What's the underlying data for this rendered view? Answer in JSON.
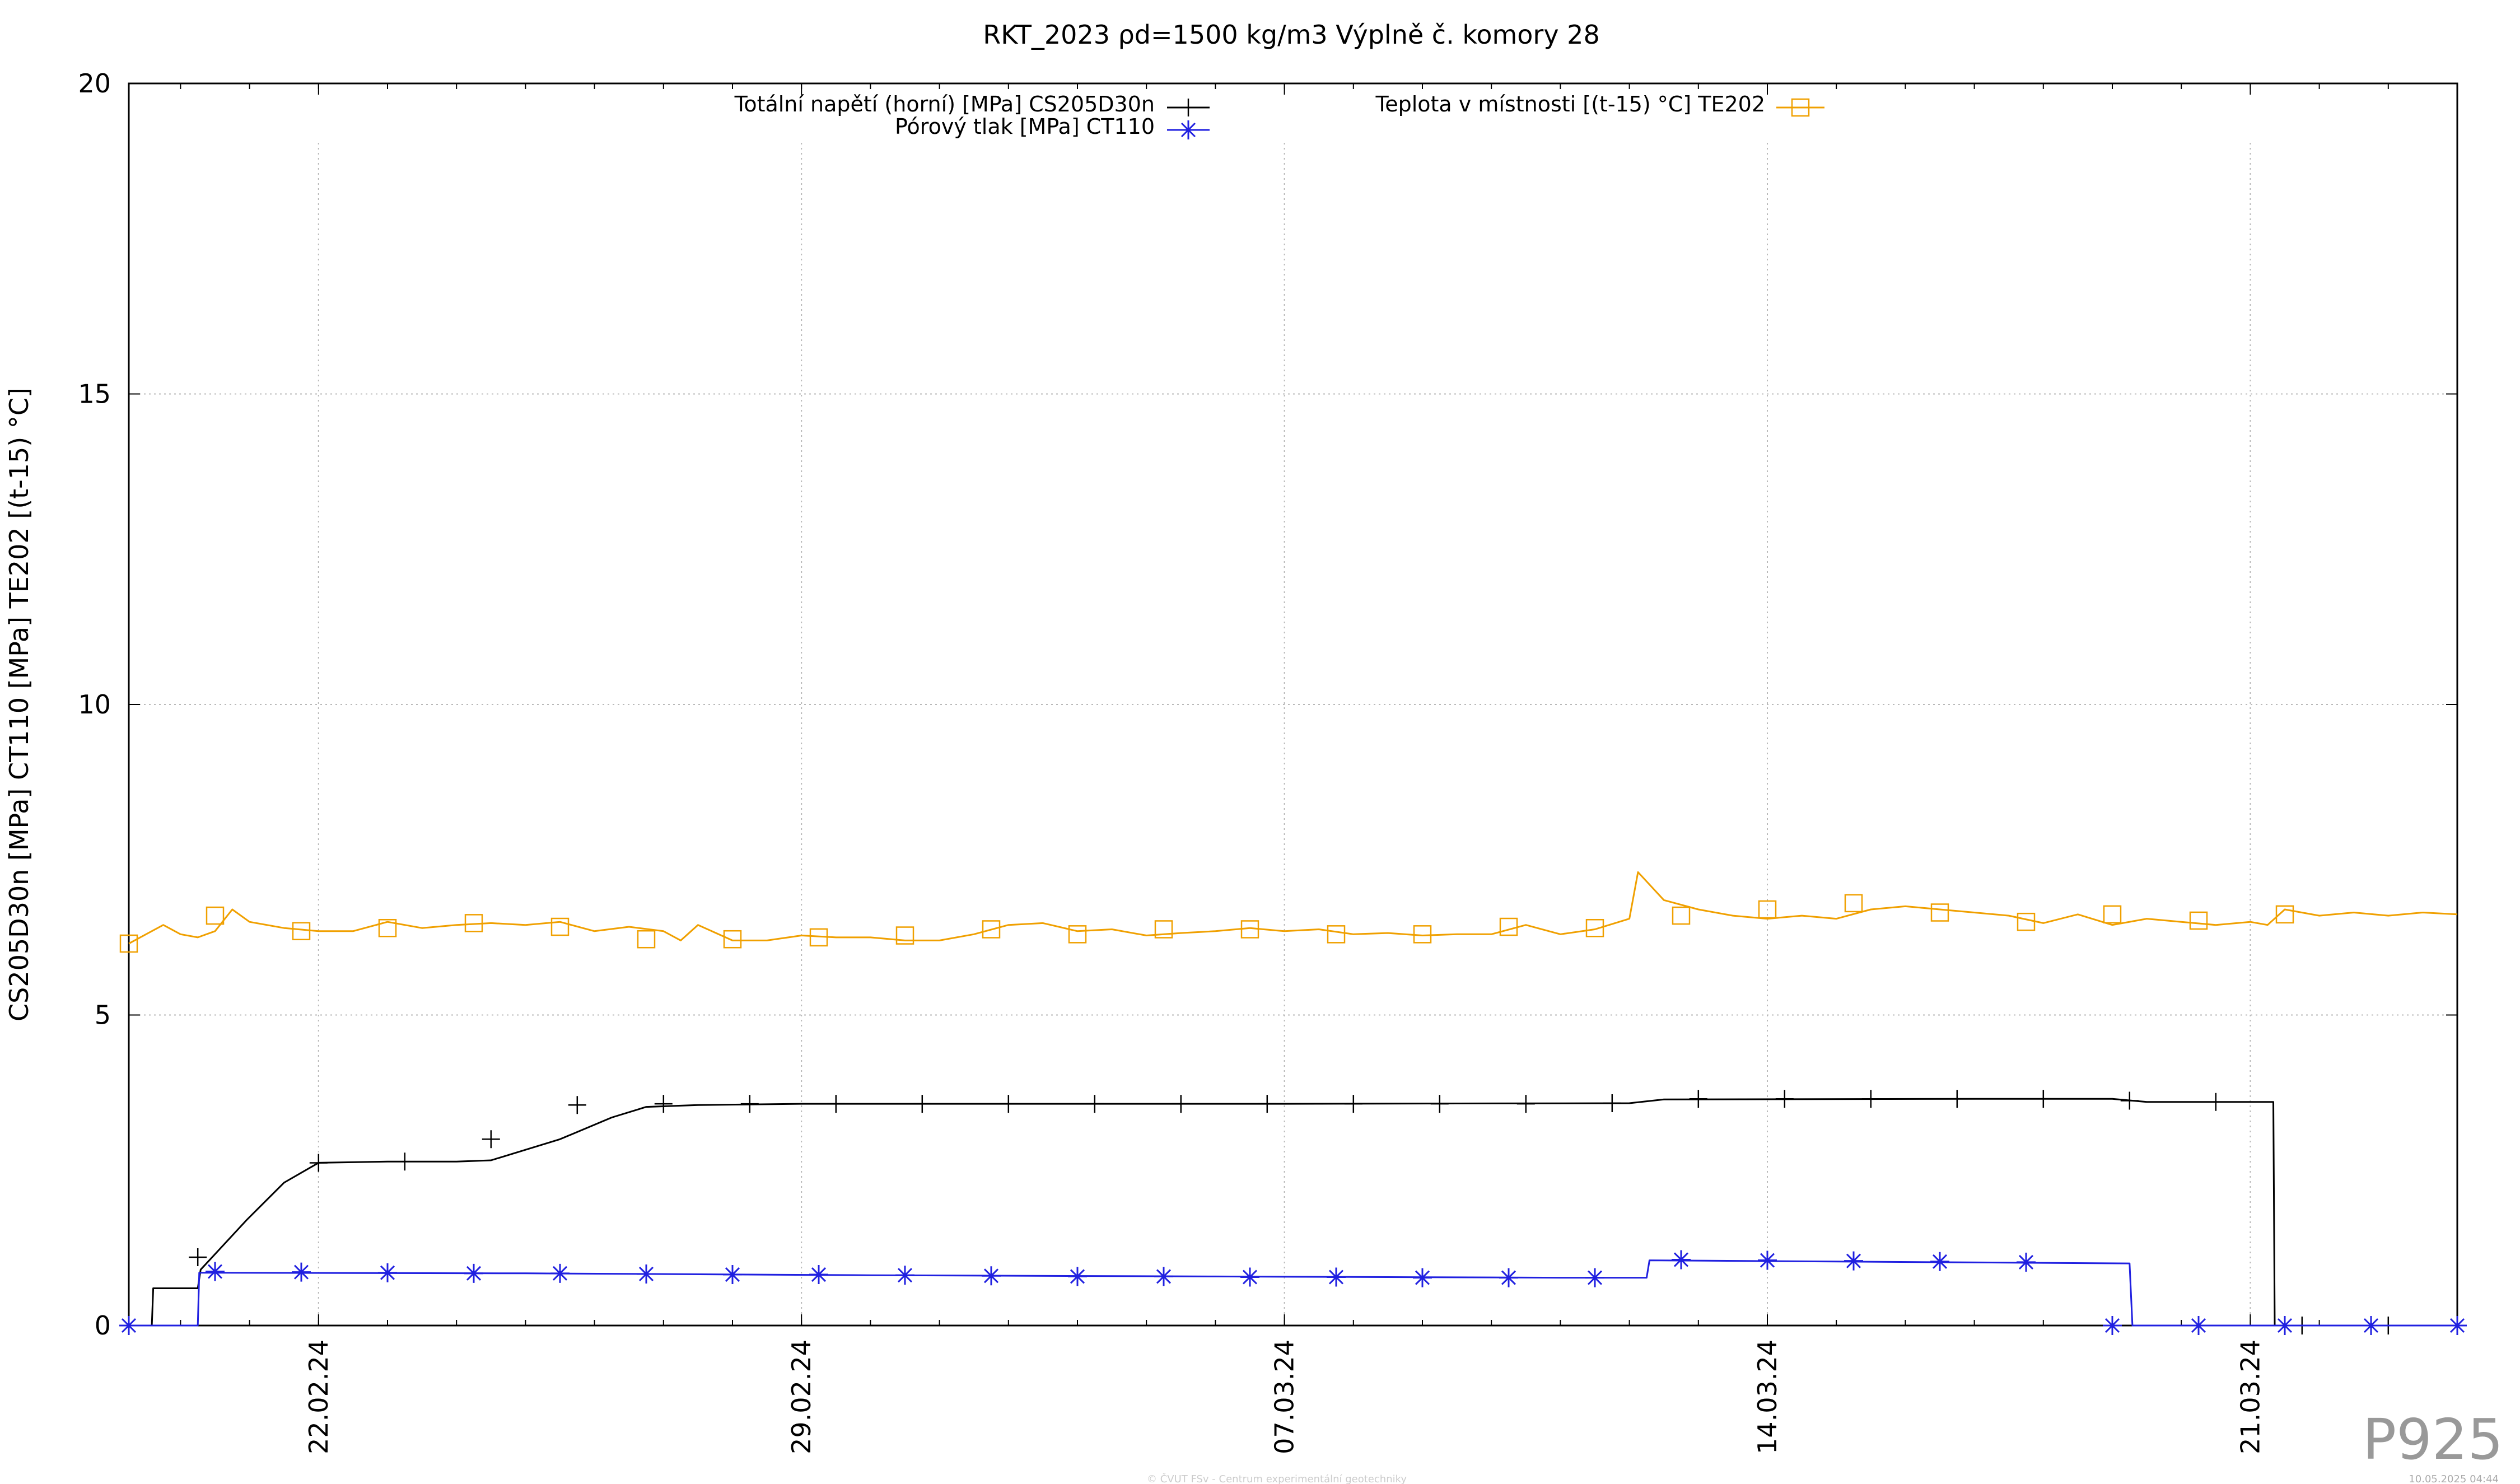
{
  "chart_data": {
    "type": "line",
    "title": "RKT_2023 ρd=1500 kg/m3 Výplně č. komory 28",
    "ylabel": "CS205D30n [MPa] CT110 [MPa] TE202 [(t-15) °C]",
    "xlabel": "",
    "ylim": [
      0,
      20
    ],
    "yticks": [
      "0",
      "5",
      "10",
      "15",
      "20"
    ],
    "xlim": [
      "2024-02-19T06:00",
      "2024-03-24T00:00"
    ],
    "xticks": [
      {
        "date": "2024-02-22",
        "label": "22.02.24"
      },
      {
        "date": "2024-02-29",
        "label": "29.02.24"
      },
      {
        "date": "2024-03-07",
        "label": "07.03.24"
      },
      {
        "date": "2024-03-14",
        "label": "14.03.24"
      },
      {
        "date": "2024-03-21",
        "label": "21.03.24"
      }
    ],
    "grid": true,
    "legend_position": "top",
    "series": [
      {
        "name": "Totální napětí (horní) [MPa] CS205D30n",
        "color": "#000000",
        "marker": "plus",
        "points": [
          [
            "2024-02-19T06:00",
            0.0
          ],
          [
            "2024-02-19T14:00",
            0.0
          ],
          [
            "2024-02-19T14:30",
            0.6
          ],
          [
            "2024-02-20T06:00",
            0.6
          ],
          [
            "2024-02-20T07:00",
            0.9
          ],
          [
            "2024-02-20T12:00",
            1.15
          ],
          [
            "2024-02-20T23:00",
            1.7
          ],
          [
            "2024-02-21T12:00",
            2.3
          ],
          [
            "2024-02-22T00:00",
            2.62
          ],
          [
            "2024-02-23T00:00",
            2.64
          ],
          [
            "2024-02-24T00:00",
            2.64
          ],
          [
            "2024-02-24T12:00",
            2.66
          ],
          [
            "2024-02-25T12:00",
            3.0
          ],
          [
            "2024-02-26T06:00",
            3.35
          ],
          [
            "2024-02-26T18:00",
            3.52
          ],
          [
            "2024-02-27T12:00",
            3.55
          ],
          [
            "2024-02-29T00:00",
            3.57
          ],
          [
            "2024-03-07T00:00",
            3.57
          ],
          [
            "2024-03-12T00:00",
            3.58
          ],
          [
            "2024-03-12T12:00",
            3.64
          ],
          [
            "2024-03-17T00:00",
            3.65
          ],
          [
            "2024-03-19T00:00",
            3.65
          ],
          [
            "2024-03-19T12:00",
            3.6
          ],
          [
            "2024-03-21T08:00",
            3.6
          ],
          [
            "2024-03-21T08:30",
            0.0
          ],
          [
            "2024-03-24T00:00",
            0.0
          ]
        ],
        "markers": [
          [
            "2024-02-20T06:00",
            1.1
          ],
          [
            "2024-02-22T00:00",
            2.62
          ],
          [
            "2024-02-23T06:00",
            2.64
          ],
          [
            "2024-02-24T12:00",
            3.0
          ],
          [
            "2024-02-25T18:00",
            3.55
          ],
          [
            "2024-02-27T00:00",
            3.57
          ],
          [
            "2024-02-28T06:00",
            3.57
          ],
          [
            "2024-02-29T12:00",
            3.57
          ],
          [
            "2024-03-01T18:00",
            3.57
          ],
          [
            "2024-03-03T00:00",
            3.57
          ],
          [
            "2024-03-04T06:00",
            3.57
          ],
          [
            "2024-03-05T12:00",
            3.57
          ],
          [
            "2024-03-06T18:00",
            3.57
          ],
          [
            "2024-03-08T00:00",
            3.57
          ],
          [
            "2024-03-09T06:00",
            3.57
          ],
          [
            "2024-03-10T12:00",
            3.57
          ],
          [
            "2024-03-11T18:00",
            3.58
          ],
          [
            "2024-03-13T00:00",
            3.65
          ],
          [
            "2024-03-14T06:00",
            3.65
          ],
          [
            "2024-03-15T12:00",
            3.65
          ],
          [
            "2024-03-16T18:00",
            3.65
          ],
          [
            "2024-03-18T00:00",
            3.65
          ],
          [
            "2024-03-19T06:00",
            3.62
          ],
          [
            "2024-03-20T12:00",
            3.6
          ],
          [
            "2024-03-21T18:00",
            0.0
          ],
          [
            "2024-03-23T00:00",
            0.0
          ]
        ]
      },
      {
        "name": "Pórový tlak [MPa] CT110",
        "color": "#2020e0",
        "marker": "star",
        "points": [
          [
            "2024-02-19T06:00",
            0.0
          ],
          [
            "2024-02-20T06:00",
            0.0
          ],
          [
            "2024-02-20T06:30",
            0.85
          ],
          [
            "2024-02-25T00:00",
            0.84
          ],
          [
            "2024-03-01T00:00",
            0.81
          ],
          [
            "2024-03-06T00:00",
            0.79
          ],
          [
            "2024-03-11T00:00",
            0.77
          ],
          [
            "2024-03-12T06:00",
            0.77
          ],
          [
            "2024-03-12T07:00",
            1.05
          ],
          [
            "2024-03-19T06:00",
            1.0
          ],
          [
            "2024-03-19T07:00",
            0.0
          ],
          [
            "2024-03-24T00:00",
            0.0
          ]
        ],
        "markers": [
          [
            "2024-02-19T06:00",
            0.0
          ],
          [
            "2024-02-20T12:00",
            0.87
          ],
          [
            "2024-02-21T18:00",
            0.86
          ],
          [
            "2024-02-23T00:00",
            0.85
          ],
          [
            "2024-02-24T06:00",
            0.84
          ],
          [
            "2024-02-25T12:00",
            0.84
          ],
          [
            "2024-02-26T18:00",
            0.83
          ],
          [
            "2024-02-28T00:00",
            0.82
          ],
          [
            "2024-02-29T06:00",
            0.82
          ],
          [
            "2024-03-01T12:00",
            0.81
          ],
          [
            "2024-03-02T18:00",
            0.8
          ],
          [
            "2024-03-04T00:00",
            0.79
          ],
          [
            "2024-03-05T06:00",
            0.79
          ],
          [
            "2024-03-06T12:00",
            0.78
          ],
          [
            "2024-03-07T18:00",
            0.78
          ],
          [
            "2024-03-09T00:00",
            0.77
          ],
          [
            "2024-03-10T06:00",
            0.77
          ],
          [
            "2024-03-11T12:00",
            0.77
          ],
          [
            "2024-03-12T18:00",
            1.06
          ],
          [
            "2024-03-14T00:00",
            1.05
          ],
          [
            "2024-03-15T06:00",
            1.04
          ],
          [
            "2024-03-16T12:00",
            1.03
          ],
          [
            "2024-03-17T18:00",
            1.02
          ],
          [
            "2024-03-19T00:00",
            0.0
          ],
          [
            "2024-03-20T06:00",
            0.0
          ],
          [
            "2024-03-21T12:00",
            0.0
          ],
          [
            "2024-03-22T18:00",
            0.0
          ],
          [
            "2024-03-24T00:00",
            0.0
          ]
        ]
      },
      {
        "name": "Teplota v místnosti [(t-15) °C] TE202",
        "color": "#f0a000",
        "marker": "square",
        "points": [
          [
            "2024-02-19T06:00",
            6.15
          ],
          [
            "2024-02-19T12:00",
            6.3
          ],
          [
            "2024-02-19T18:00",
            6.45
          ],
          [
            "2024-02-20T00:00",
            6.3
          ],
          [
            "2024-02-20T06:00",
            6.25
          ],
          [
            "2024-02-20T12:00",
            6.35
          ],
          [
            "2024-02-20T18:00",
            6.7
          ],
          [
            "2024-02-21T00:00",
            6.5
          ],
          [
            "2024-02-21T12:00",
            6.4
          ],
          [
            "2024-02-22T00:00",
            6.35
          ],
          [
            "2024-02-22T12:00",
            6.35
          ],
          [
            "2024-02-23T00:00",
            6.5
          ],
          [
            "2024-02-23T12:00",
            6.4
          ],
          [
            "2024-02-24T00:00",
            6.45
          ],
          [
            "2024-02-24T12:00",
            6.48
          ],
          [
            "2024-02-25T00:00",
            6.45
          ],
          [
            "2024-02-25T12:00",
            6.5
          ],
          [
            "2024-02-26T00:00",
            6.35
          ],
          [
            "2024-02-26T12:00",
            6.42
          ],
          [
            "2024-02-27T00:00",
            6.35
          ],
          [
            "2024-02-27T06:00",
            6.2
          ],
          [
            "2024-02-27T12:00",
            6.45
          ],
          [
            "2024-02-28T00:00",
            6.2
          ],
          [
            "2024-02-28T12:00",
            6.2
          ],
          [
            "2024-02-29T00:00",
            6.28
          ],
          [
            "2024-02-29T12:00",
            6.25
          ],
          [
            "2024-03-01T00:00",
            6.25
          ],
          [
            "2024-03-01T12:00",
            6.2
          ],
          [
            "2024-03-02T00:00",
            6.2
          ],
          [
            "2024-03-02T12:00",
            6.3
          ],
          [
            "2024-03-03T00:00",
            6.45
          ],
          [
            "2024-03-03T12:00",
            6.48
          ],
          [
            "2024-03-04T00:00",
            6.35
          ],
          [
            "2024-03-04T12:00",
            6.38
          ],
          [
            "2024-03-05T00:00",
            6.28
          ],
          [
            "2024-03-05T12:00",
            6.32
          ],
          [
            "2024-03-06T00:00",
            6.35
          ],
          [
            "2024-03-06T12:00",
            6.4
          ],
          [
            "2024-03-07T00:00",
            6.35
          ],
          [
            "2024-03-07T12:00",
            6.38
          ],
          [
            "2024-03-08T00:00",
            6.3
          ],
          [
            "2024-03-08T12:00",
            6.32
          ],
          [
            "2024-03-09T00:00",
            6.28
          ],
          [
            "2024-03-09T12:00",
            6.3
          ],
          [
            "2024-03-10T00:00",
            6.3
          ],
          [
            "2024-03-10T12:00",
            6.45
          ],
          [
            "2024-03-11T00:00",
            6.3
          ],
          [
            "2024-03-11T12:00",
            6.38
          ],
          [
            "2024-03-12T00:00",
            6.55
          ],
          [
            "2024-03-12T03:00",
            7.3
          ],
          [
            "2024-03-12T12:00",
            6.85
          ],
          [
            "2024-03-13T00:00",
            6.7
          ],
          [
            "2024-03-13T12:00",
            6.6
          ],
          [
            "2024-03-14T00:00",
            6.55
          ],
          [
            "2024-03-14T12:00",
            6.6
          ],
          [
            "2024-03-15T00:00",
            6.55
          ],
          [
            "2024-03-15T12:00",
            6.7
          ],
          [
            "2024-03-16T00:00",
            6.75
          ],
          [
            "2024-03-16T12:00",
            6.7
          ],
          [
            "2024-03-17T00:00",
            6.65
          ],
          [
            "2024-03-17T12:00",
            6.6
          ],
          [
            "2024-03-18T00:00",
            6.48
          ],
          [
            "2024-03-18T12:00",
            6.62
          ],
          [
            "2024-03-19T00:00",
            6.45
          ],
          [
            "2024-03-19T12:00",
            6.55
          ],
          [
            "2024-03-20T00:00",
            6.5
          ],
          [
            "2024-03-20T12:00",
            6.45
          ],
          [
            "2024-03-21T00:00",
            6.5
          ],
          [
            "2024-03-21T06:00",
            6.45
          ],
          [
            "2024-03-21T12:00",
            6.7
          ],
          [
            "2024-03-22T00:00",
            6.6
          ],
          [
            "2024-03-22T12:00",
            6.65
          ],
          [
            "2024-03-23T00:00",
            6.6
          ],
          [
            "2024-03-23T12:00",
            6.65
          ],
          [
            "2024-03-24T00:00",
            6.62
          ]
        ],
        "markers": [
          [
            "2024-02-19T06:00",
            6.15
          ],
          [
            "2024-02-20T12:00",
            6.6
          ],
          [
            "2024-02-21T18:00",
            6.35
          ],
          [
            "2024-02-23T00:00",
            6.4
          ],
          [
            "2024-02-24T06:00",
            6.48
          ],
          [
            "2024-02-25T12:00",
            6.42
          ],
          [
            "2024-02-26T18:00",
            6.22
          ],
          [
            "2024-02-28T00:00",
            6.22
          ],
          [
            "2024-02-29T06:00",
            6.25
          ],
          [
            "2024-03-01T12:00",
            6.28
          ],
          [
            "2024-03-02T18:00",
            6.38
          ],
          [
            "2024-03-04T00:00",
            6.3
          ],
          [
            "2024-03-05T06:00",
            6.38
          ],
          [
            "2024-03-06T12:00",
            6.38
          ],
          [
            "2024-03-07T18:00",
            6.3
          ],
          [
            "2024-03-09T00:00",
            6.3
          ],
          [
            "2024-03-10T06:00",
            6.42
          ],
          [
            "2024-03-11T12:00",
            6.4
          ],
          [
            "2024-03-12T18:00",
            6.6
          ],
          [
            "2024-03-14T00:00",
            6.7
          ],
          [
            "2024-03-15T06:00",
            6.8
          ],
          [
            "2024-03-16T12:00",
            6.65
          ],
          [
            "2024-03-17T18:00",
            6.5
          ],
          [
            "2024-03-19T00:00",
            6.62
          ],
          [
            "2024-03-20T06:00",
            6.52
          ],
          [
            "2024-03-21T12:00",
            6.62
          ]
        ]
      }
    ]
  },
  "watermark": "P925",
  "footer_credit": "© ČVUT FSv - Centrum experimentální geotechniky",
  "footer_timestamp": "10.05.2025 04:44"
}
